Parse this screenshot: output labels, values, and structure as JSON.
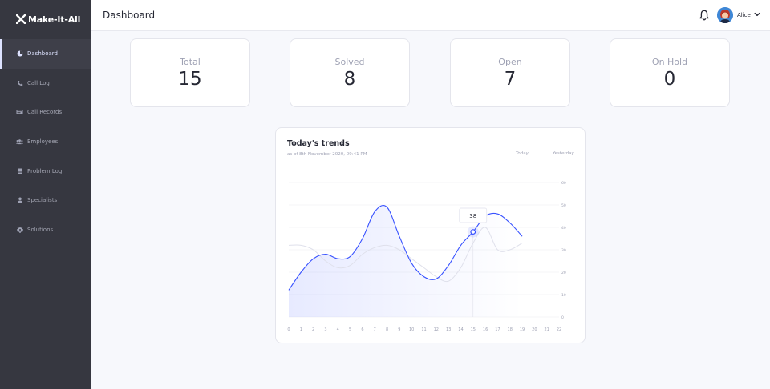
{
  "app": {
    "brand": "Make-It-All"
  },
  "sidebar": {
    "items": [
      {
        "label": "Dashboard",
        "icon": "dashboard-icon",
        "active": true
      },
      {
        "label": "Call Log",
        "icon": "phone-icon",
        "active": false
      },
      {
        "label": "Call Records",
        "icon": "records-icon",
        "active": false
      },
      {
        "label": "Employees",
        "icon": "users-icon",
        "active": false
      },
      {
        "label": "Problem Log",
        "icon": "log-icon",
        "active": false
      },
      {
        "label": "Specialists",
        "icon": "user-icon",
        "active": false
      },
      {
        "label": "Solutions",
        "icon": "gear-icon",
        "active": false
      }
    ]
  },
  "header": {
    "title": "Dashboard",
    "user_name": "Alice"
  },
  "stats": [
    {
      "label": "Total",
      "value": "15"
    },
    {
      "label": "Solved",
      "value": "8"
    },
    {
      "label": "Open",
      "value": "7"
    },
    {
      "label": "On Hold",
      "value": "0"
    }
  ],
  "trends": {
    "title": "Today's trends",
    "subtitle": "as of 8th November 2020, 09:41 PM",
    "legend_today": "Today",
    "legend_yesterday": "Yesterday"
  },
  "chart_data": {
    "type": "line",
    "title": "Today's trends",
    "x": [
      0,
      1,
      2,
      3,
      4,
      5,
      6,
      7,
      8,
      9,
      10,
      11,
      12,
      13,
      14,
      15,
      16,
      17,
      18,
      19
    ],
    "x_ticks": [
      "0",
      "1",
      "2",
      "3",
      "4",
      "5",
      "6",
      "7",
      "8",
      "9",
      "10",
      "11",
      "12",
      "13",
      "14",
      "15",
      "16",
      "17",
      "18",
      "19",
      "20",
      "21",
      "22"
    ],
    "y_ticks": [
      "0",
      "10",
      "20",
      "30",
      "40",
      "50",
      "60"
    ],
    "ylim": [
      0,
      60
    ],
    "xlim": [
      0,
      22
    ],
    "grid": true,
    "legend_position": "top-right",
    "colors": {
      "today": "#3751ff",
      "yesterday": "#dfe0eb",
      "area": "#eef0fd"
    },
    "series": [
      {
        "name": "Today",
        "values": [
          12,
          20,
          26,
          28,
          26,
          27,
          35,
          47,
          49,
          36,
          24,
          18,
          17,
          23,
          32,
          38,
          45,
          46,
          42,
          36
        ]
      },
      {
        "name": "Yesterday",
        "values": [
          32,
          32,
          30,
          25,
          22,
          23,
          28,
          31,
          32,
          30,
          26,
          22,
          18,
          16,
          22,
          33,
          40,
          30,
          30,
          33
        ]
      }
    ],
    "annotation": {
      "x": 15,
      "y": 38,
      "label": "38"
    }
  }
}
